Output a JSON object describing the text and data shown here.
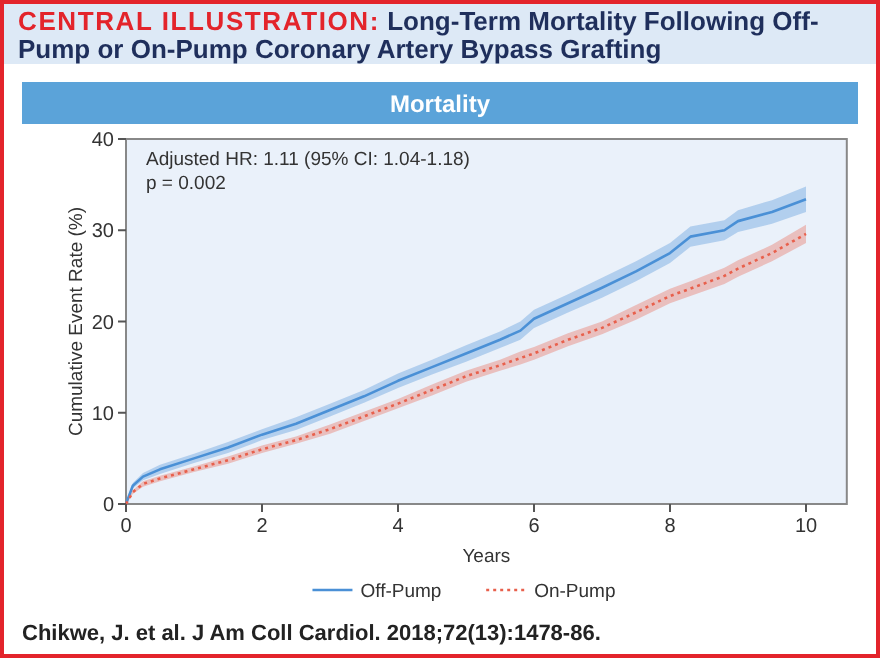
{
  "chart_data": {
    "type": "line",
    "title": "CENTRAL ILLUSTRATION: Long-Term Mortality Following Off-Pump or On-Pump Coronary Artery Bypass Grafting",
    "subtitle": "Mortality",
    "xlabel": "Years",
    "ylabel": "Cumulative Event Rate (%)",
    "annotations": [
      "Adjusted HR: 1.11 (95% CI: 1.04-1.18)",
      "p = 0.002",
      "Chikwe, J. et al. J Am Coll Cardiol. 2018;72(13):1478-86."
    ],
    "x": [
      0,
      0.1,
      0.25,
      0.5,
      1,
      1.5,
      2,
      2.5,
      3,
      3.5,
      4,
      4.5,
      5,
      5.5,
      5.8,
      6,
      6.5,
      7,
      7.5,
      8,
      8.3,
      8.8,
      9,
      9.5,
      10
    ],
    "series": [
      {
        "name": "Off-Pump",
        "color": "#4a90d6",
        "line_style": "solid",
        "values": [
          0,
          2,
          3,
          3.8,
          5,
          6.2,
          7.6,
          8.8,
          10.3,
          11.8,
          13.5,
          15,
          16.5,
          18,
          19,
          20.3,
          22,
          23.7,
          25.5,
          27.5,
          29.3,
          30,
          31,
          32,
          33.4
        ],
        "lower": [
          0,
          1.7,
          2.6,
          3.3,
          4.5,
          5.6,
          7,
          8.1,
          9.6,
          11.1,
          12.7,
          14.2,
          15.6,
          17.1,
          18,
          19.3,
          21,
          22.6,
          24.4,
          26.4,
          28.2,
          28.9,
          29.8,
          30.7,
          32
        ],
        "upper": [
          0,
          2.3,
          3.4,
          4.3,
          5.5,
          6.8,
          8.2,
          9.5,
          11,
          12.5,
          14.3,
          15.8,
          17.4,
          18.9,
          20,
          21.3,
          23,
          24.8,
          26.6,
          28.6,
          30.4,
          31.1,
          32.2,
          33.3,
          34.8
        ]
      },
      {
        "name": "On-Pump",
        "color": "#e8604c",
        "line_style": "dotted",
        "values": [
          0,
          1.3,
          2.2,
          2.8,
          3.8,
          4.8,
          6,
          7,
          8.2,
          9.6,
          11,
          12.5,
          14,
          15.2,
          16,
          16.5,
          18,
          19.3,
          21,
          22.8,
          23.6,
          25,
          25.8,
          27.5,
          29.6
        ],
        "lower": [
          0,
          1.1,
          1.9,
          2.5,
          3.5,
          4.4,
          5.6,
          6.6,
          7.7,
          9.1,
          10.5,
          11.9,
          13.4,
          14.6,
          15.3,
          15.8,
          17.3,
          18.6,
          20.2,
          22,
          22.8,
          24.1,
          24.9,
          26.6,
          28.6
        ],
        "upper": [
          0,
          1.5,
          2.5,
          3.1,
          4.1,
          5.2,
          6.4,
          7.4,
          8.7,
          10.1,
          11.5,
          13.1,
          14.6,
          15.8,
          16.7,
          17.2,
          18.7,
          20,
          21.8,
          23.6,
          24.4,
          25.9,
          26.7,
          28.4,
          30.6
        ]
      }
    ],
    "xlim": [
      0,
      10.6
    ],
    "xticks": [
      0,
      2,
      4,
      6,
      8,
      10
    ],
    "ylim": [
      0,
      40
    ],
    "yticks": [
      0,
      10,
      20,
      30,
      40
    ],
    "grid": false,
    "legend": "bottom",
    "marker": "none"
  }
}
